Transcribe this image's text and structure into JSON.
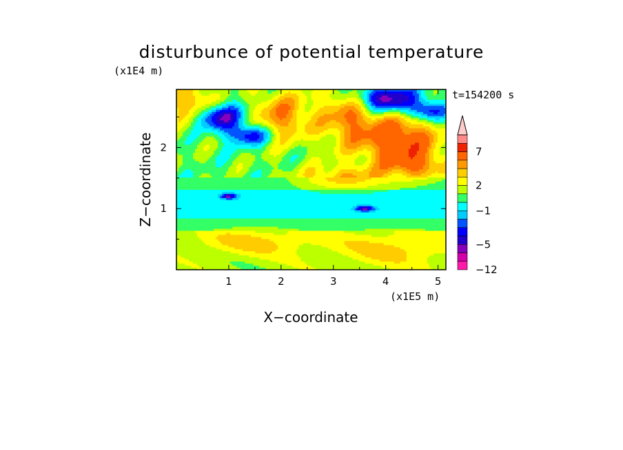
{
  "chart_data": {
    "type": "heatmap",
    "title": "disturbunce of potential temperature",
    "xlabel": "X−coordinate",
    "ylabel": "Z−coordinate",
    "x_unit": "(x1E5 m)",
    "y_unit": "(x1E4 m)",
    "time_label": "t=154200 s",
    "xlim": [
      0,
      5.15
    ],
    "ylim": [
      0,
      2.95
    ],
    "x_ticks": [
      "1",
      "2",
      "3",
      "4",
      "5"
    ],
    "x_tick_values": [
      1,
      2,
      3,
      4,
      5
    ],
    "y_ticks": [
      "1",
      "2"
    ],
    "y_tick_values": [
      1,
      2
    ],
    "colorbar": {
      "levels": [
        -12,
        -9,
        -7,
        -5,
        -4,
        -3,
        -2,
        -1,
        0,
        1,
        2,
        3,
        4,
        5,
        7,
        9,
        11
      ],
      "colors": [
        "#ff1aaa",
        "#d400aa",
        "#8800bb",
        "#2200cc",
        "#0000ff",
        "#0055ff",
        "#00ccff",
        "#00ffff",
        "#33ff66",
        "#bbff00",
        "#ffff00",
        "#ffcc00",
        "#ff9900",
        "#ff6600",
        "#ee2200",
        "#ff8888",
        "#ffcccc"
      ],
      "tick_labels": [
        "7",
        "2",
        "−1",
        "−5",
        "−12"
      ],
      "tick_values": [
        7,
        2,
        -1,
        -5,
        -12
      ],
      "extend": "max"
    },
    "features": [
      {
        "x": 0.8,
        "z": 2.5,
        "amplitude": -6,
        "sx": 0.35,
        "sz": 0.15
      },
      {
        "x": 1.4,
        "z": 2.2,
        "amplitude": -5,
        "sx": 0.3,
        "sz": 0.12
      },
      {
        "x": 4.0,
        "z": 2.8,
        "amplitude": -7,
        "sx": 0.4,
        "sz": 0.15
      },
      {
        "x": 4.8,
        "z": 2.6,
        "amplitude": -5,
        "sx": 0.25,
        "sz": 0.12
      },
      {
        "x": 4.3,
        "z": 2.1,
        "amplitude": 6,
        "sx": 0.5,
        "sz": 0.3
      },
      {
        "x": 3.3,
        "z": 2.5,
        "amplitude": 4,
        "sx": 0.4,
        "sz": 0.35
      },
      {
        "x": 0.3,
        "z": 2.7,
        "amplitude": 4,
        "sx": 0.3,
        "sz": 0.25
      },
      {
        "x": 2.0,
        "z": 2.5,
        "amplitude": 4,
        "sx": 0.4,
        "sz": 0.3
      },
      {
        "x": 3.2,
        "z": 1.5,
        "amplitude": 3,
        "sx": 0.6,
        "sz": 0.15
      },
      {
        "x": 4.6,
        "z": 1.7,
        "amplitude": 3,
        "sx": 0.4,
        "sz": 0.15
      },
      {
        "x": 3.6,
        "z": 1.0,
        "amplitude": -5,
        "sx": 0.12,
        "sz": 0.03
      },
      {
        "x": 1.0,
        "z": 1.2,
        "amplitude": -5,
        "sx": 0.1,
        "sz": 0.03
      },
      {
        "x": 4.2,
        "z": 0.35,
        "amplitude": 2,
        "sx": 0.8,
        "sz": 0.2
      },
      {
        "x": 1.5,
        "z": 0.45,
        "amplitude": 2,
        "sx": 0.8,
        "sz": 0.15
      }
    ]
  }
}
